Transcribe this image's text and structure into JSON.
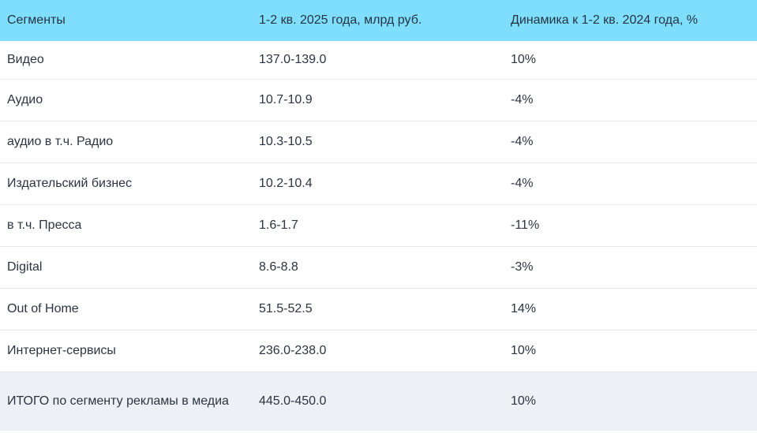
{
  "table": {
    "headers": [
      "Сегменты",
      "1-2 кв. 2025 года, млрд руб.",
      "Динамика к 1-2 кв. 2024 года, %"
    ],
    "rows": [
      [
        "Видео",
        "137.0-139.0",
        "10%"
      ],
      [
        "Аудио",
        "10.7-10.9",
        "-4%"
      ],
      [
        "аудио в т.ч. Радио",
        "10.3-10.5",
        "-4%"
      ],
      [
        "Издательский бизнес",
        "10.2-10.4",
        "-4%"
      ],
      [
        "в т.ч. Пресса",
        "1.6-1.7",
        "-11%"
      ],
      [
        "Digital",
        "8.6-8.8",
        "-3%"
      ],
      [
        "Out of Home",
        "51.5-52.5",
        "14%"
      ],
      [
        "Интернет-сервисы",
        "236.0-238.0",
        "10%"
      ],
      [
        "ИТОГО по сегменту рекламы в медиа",
        "445.0-450.0",
        "10%"
      ]
    ]
  },
  "colors": {
    "header_bg": "#7fdefc",
    "total_row_bg": "#edf1f5",
    "text": "#2b3440",
    "row_divider": "#e6eaee"
  }
}
